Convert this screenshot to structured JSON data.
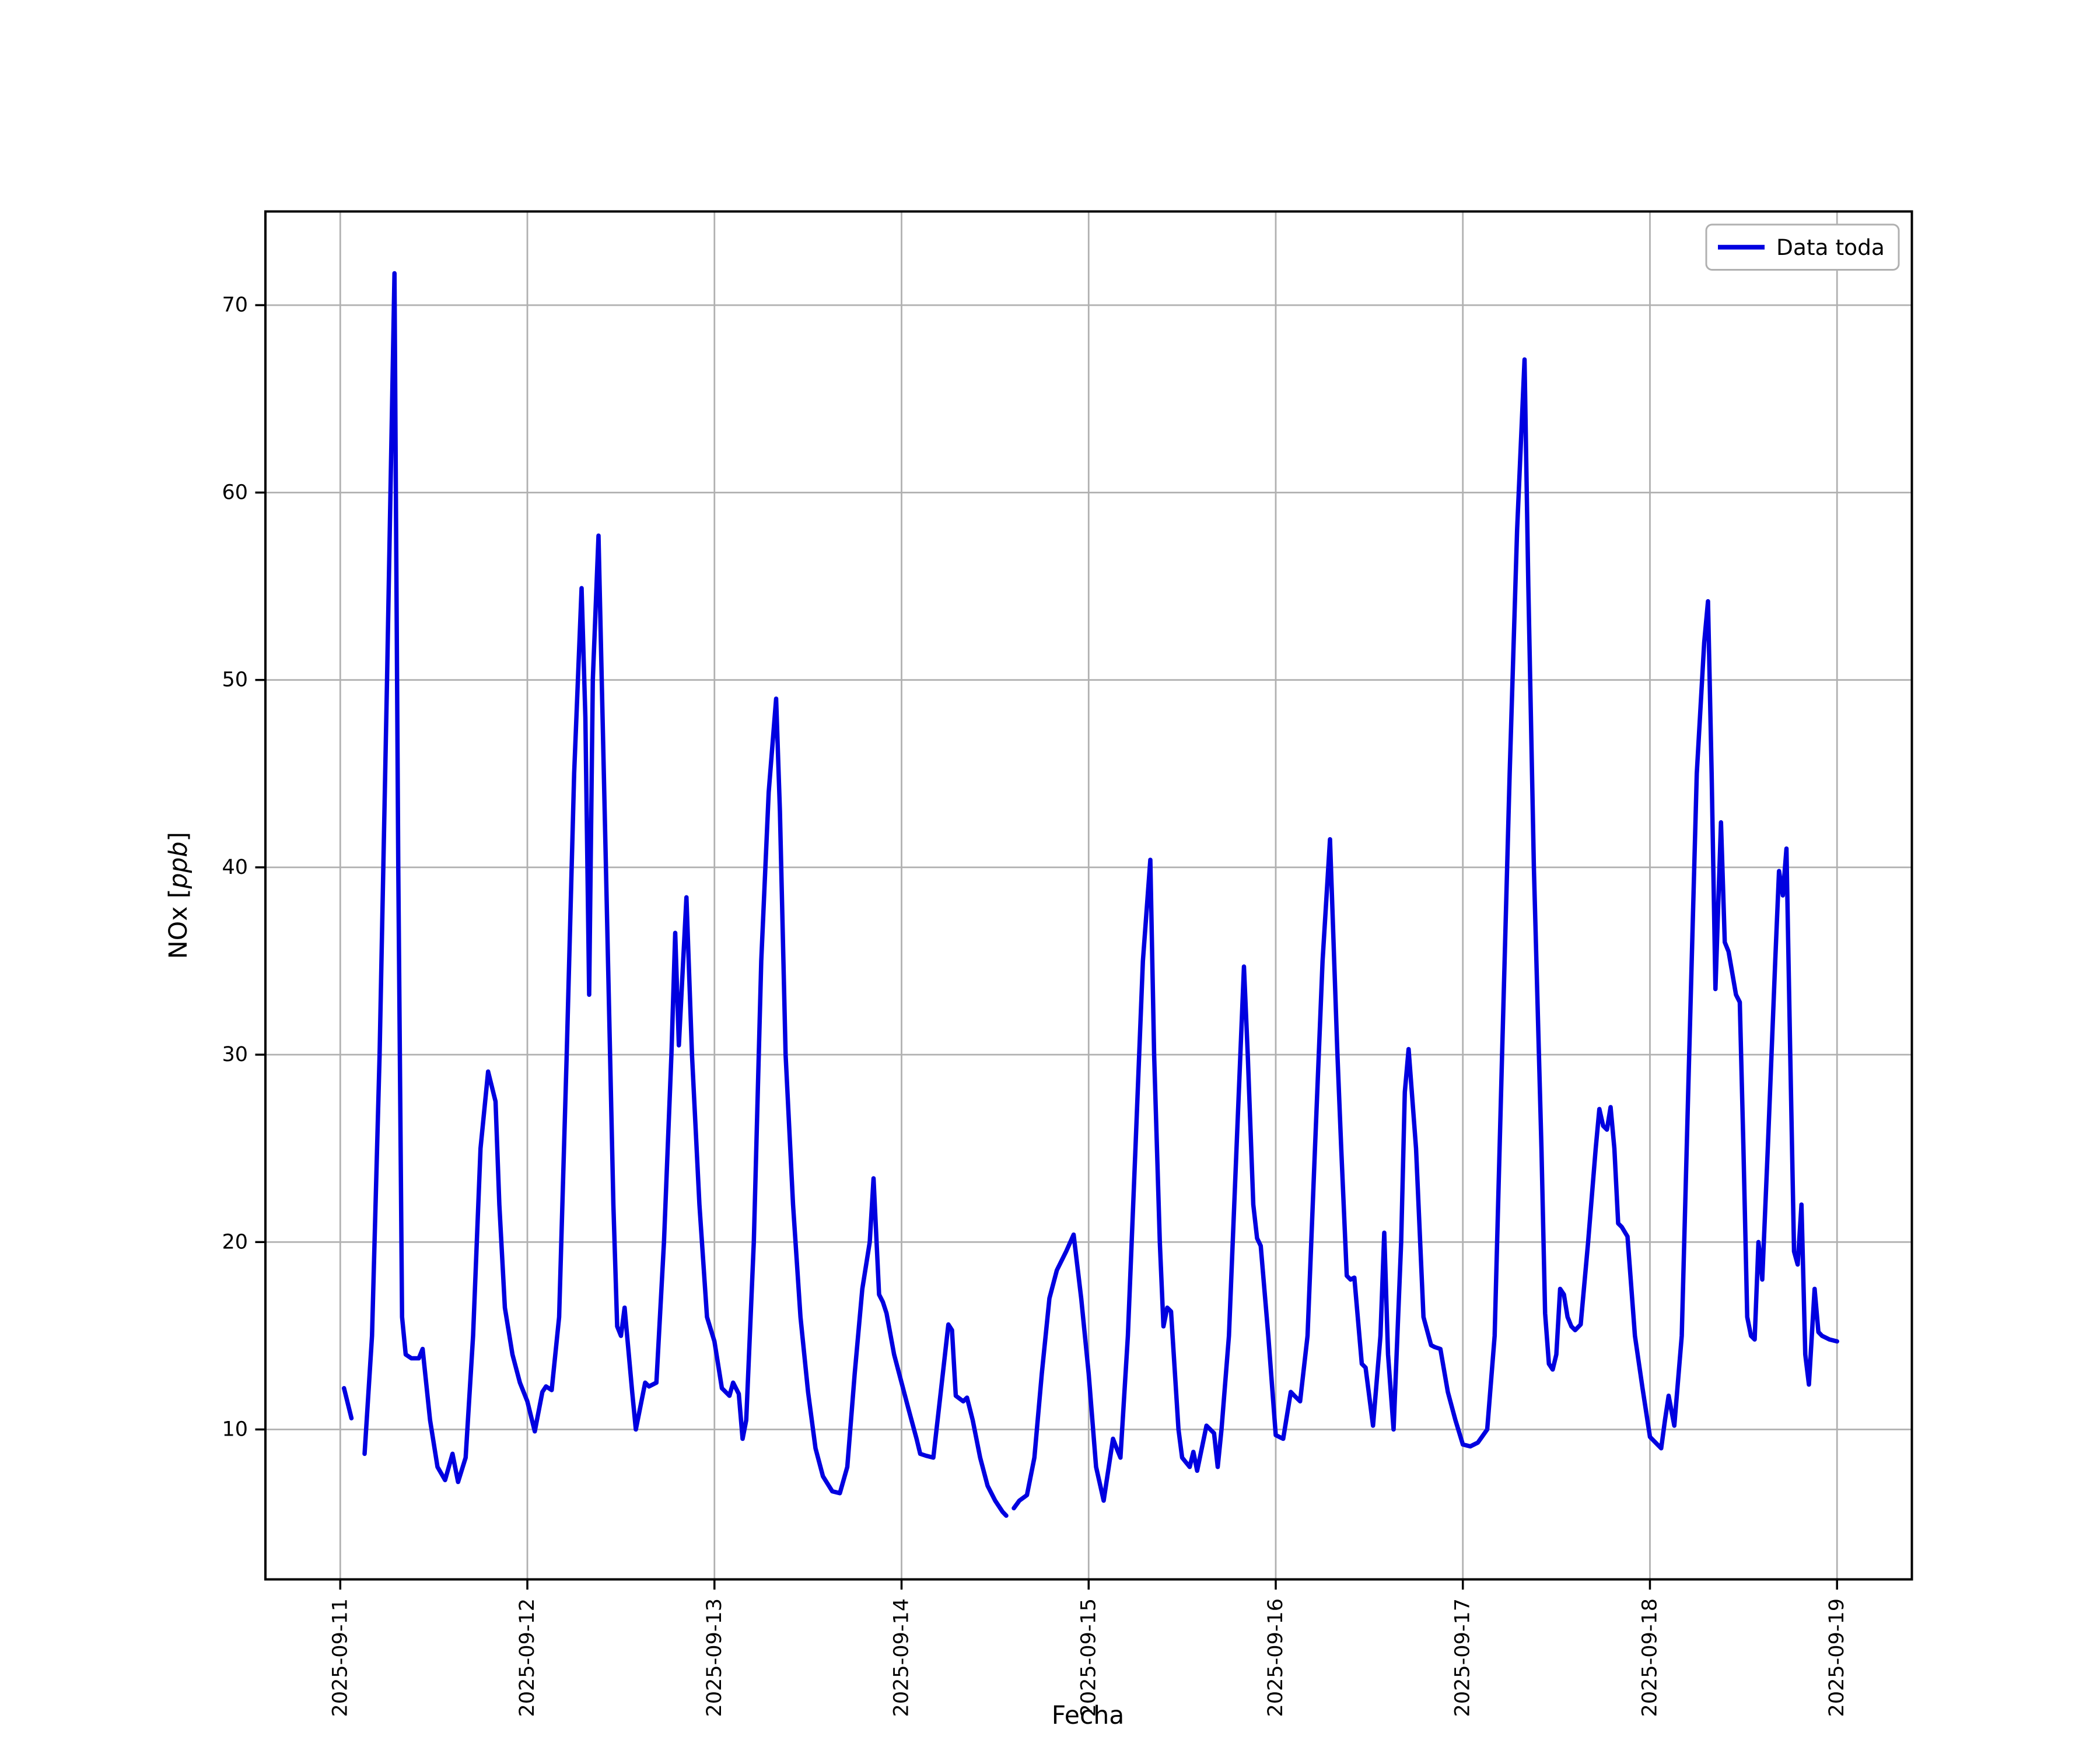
{
  "figure": {
    "background": "#ffffff",
    "grid_color": "#b0b0b0",
    "spine_color": "#000000"
  },
  "legend": {
    "label": "Data toda",
    "position": "upper right"
  },
  "chart_data": {
    "type": "line",
    "title": "",
    "xlabel": "Fecha",
    "ylabel": "NOx [ppb]",
    "ylabel_prefix": "NOx [",
    "ylabel_italic": "ppb",
    "ylabel_suffix": "]",
    "line_color": "#0000e0",
    "grid": true,
    "x_tick_labels": [
      "2025-09-11",
      "2025-09-12",
      "2025-09-13",
      "2025-09-14",
      "2025-09-15",
      "2025-09-16",
      "2025-09-17",
      "2025-09-18",
      "2025-09-19"
    ],
    "y_ticks": [
      10,
      20,
      30,
      40,
      50,
      60,
      70
    ],
    "xlim_days": [
      -0.4,
      8.4
    ],
    "ylim": [
      2,
      75
    ],
    "x_unit": "days since 2025-09-11",
    "series": [
      {
        "name": "Data toda",
        "x": [
          0.02,
          0.06,
          0.1,
          0.13,
          0.17,
          0.21,
          0.25,
          0.29,
          0.31,
          0.33,
          0.35,
          0.38,
          0.42,
          0.44,
          0.48,
          0.52,
          0.56,
          0.6,
          0.63,
          0.67,
          0.71,
          0.75,
          0.79,
          0.83,
          0.85,
          0.88,
          0.92,
          0.96,
          1.0,
          1.04,
          1.08,
          1.1,
          1.13,
          1.17,
          1.21,
          1.25,
          1.29,
          1.31,
          1.33,
          1.35,
          1.38,
          1.42,
          1.46,
          1.48,
          1.5,
          1.52,
          1.56,
          1.58,
          1.63,
          1.65,
          1.69,
          1.73,
          1.77,
          1.79,
          1.81,
          1.85,
          1.88,
          1.92,
          1.96,
          2.0,
          2.04,
          2.08,
          2.1,
          2.13,
          2.15,
          2.17,
          2.21,
          2.25,
          2.29,
          2.33,
          2.35,
          2.38,
          2.42,
          2.46,
          2.5,
          2.54,
          2.58,
          2.63,
          2.67,
          2.71,
          2.75,
          2.79,
          2.83,
          2.85,
          2.88,
          2.9,
          2.92,
          2.96,
          3.0,
          3.04,
          3.08,
          3.1,
          3.13,
          3.17,
          3.21,
          3.25,
          3.27,
          3.29,
          3.33,
          3.35,
          3.38,
          3.42,
          3.46,
          3.5,
          3.54,
          3.56,
          3.58,
          3.6,
          3.63,
          3.67,
          3.71,
          3.75,
          3.79,
          3.83,
          3.88,
          3.92,
          3.96,
          4.0,
          4.04,
          4.08,
          4.13,
          4.15,
          4.17,
          4.21,
          4.25,
          4.29,
          4.33,
          4.35,
          4.38,
          4.4,
          4.42,
          4.44,
          4.48,
          4.5,
          4.54,
          4.56,
          4.58,
          4.63,
          4.67,
          4.69,
          4.71,
          4.75,
          4.79,
          4.83,
          4.85,
          4.88,
          4.9,
          4.92,
          4.96,
          5.0,
          5.04,
          5.08,
          5.1,
          5.13,
          5.17,
          5.21,
          5.25,
          5.29,
          5.33,
          5.35,
          5.38,
          5.4,
          5.42,
          5.46,
          5.48,
          5.52,
          5.56,
          5.58,
          5.6,
          5.63,
          5.67,
          5.69,
          5.71,
          5.75,
          5.79,
          5.83,
          5.85,
          5.88,
          5.92,
          5.96,
          6.0,
          6.04,
          6.08,
          6.13,
          6.17,
          6.21,
          6.25,
          6.29,
          6.33,
          6.35,
          6.38,
          6.42,
          6.44,
          6.46,
          6.48,
          6.5,
          6.52,
          6.54,
          6.56,
          6.58,
          6.6,
          6.63,
          6.67,
          6.71,
          6.73,
          6.75,
          6.77,
          6.79,
          6.81,
          6.83,
          6.85,
          6.88,
          6.92,
          6.96,
          7.0,
          7.04,
          7.06,
          7.08,
          7.1,
          7.13,
          7.17,
          7.21,
          7.25,
          7.29,
          7.31,
          7.33,
          7.35,
          7.38,
          7.4,
          7.42,
          7.46,
          7.48,
          7.5,
          7.52,
          7.54,
          7.56,
          7.58,
          7.6,
          7.63,
          7.67,
          7.69,
          7.71,
          7.73,
          7.75,
          7.77,
          7.79,
          7.81,
          7.83,
          7.85,
          7.88,
          7.9,
          7.92,
          7.96,
          8.0
        ],
        "values": [
          12.2,
          10.6,
          null,
          8.7,
          15,
          30,
          50,
          71.7,
          40,
          16,
          14,
          13.8,
          13.8,
          14.3,
          10.5,
          8,
          7.3,
          8.7,
          7.2,
          8.5,
          15,
          25,
          29.1,
          27.5,
          22,
          16.5,
          14,
          12.5,
          11.5,
          9.9,
          12,
          12.3,
          12.1,
          16,
          30,
          45,
          54.9,
          48,
          33.2,
          50,
          57.7,
          40,
          22,
          15.5,
          15,
          16.5,
          12,
          10,
          12.5,
          12.3,
          12.5,
          20,
          30,
          36.5,
          30.5,
          38.4,
          30,
          22,
          16,
          14.7,
          12.2,
          11.8,
          12.5,
          11.9,
          9.5,
          10.5,
          20,
          35,
          44,
          49,
          43,
          30,
          22,
          16,
          12,
          9,
          7.5,
          6.7,
          6.6,
          8,
          13,
          17.5,
          20,
          23.4,
          17.2,
          16.8,
          16.2,
          14,
          12.5,
          11,
          9.5,
          8.7,
          8.6,
          8.5,
          12,
          15.6,
          15.3,
          11.8,
          11.5,
          11.7,
          10.5,
          8.5,
          7,
          6.2,
          5.6,
          5.4,
          null,
          5.8,
          6.2,
          6.5,
          8.5,
          13,
          17,
          18.5,
          19.5,
          20.4,
          17,
          13,
          8,
          6.2,
          9.5,
          9,
          8.5,
          15,
          25,
          35,
          40.4,
          30,
          20,
          15.5,
          16.5,
          16.3,
          10,
          8.5,
          8,
          8.8,
          7.8,
          10.2,
          9.8,
          8,
          10,
          15,
          25,
          34.7,
          30,
          22,
          20.2,
          19.8,
          15,
          9.7,
          9.5,
          12,
          11.8,
          11.5,
          15,
          25,
          35,
          41.5,
          30,
          25,
          18.2,
          18,
          18.1,
          13.5,
          13.3,
          10.2,
          15,
          20.5,
          14,
          10,
          20,
          28,
          30.3,
          25,
          16,
          14.5,
          14.4,
          14.3,
          12,
          10.5,
          9.2,
          9.1,
          9.3,
          10,
          15,
          30,
          45,
          58,
          67.1,
          55,
          40,
          25,
          16.2,
          13.5,
          13.2,
          14,
          17.5,
          17.2,
          16,
          15.5,
          15.3,
          15.6,
          20,
          25,
          27.1,
          26.2,
          26,
          27.2,
          25,
          21,
          20.8,
          20.3,
          15,
          12.2,
          9.6,
          9.2,
          9,
          10.5,
          11.8,
          10.2,
          15,
          30,
          45,
          52,
          54.2,
          45,
          33.5,
          42.4,
          36,
          35.5,
          33.2,
          32.8,
          25,
          16,
          15,
          14.8,
          20,
          18,
          25,
          35,
          39.8,
          38.5,
          41,
          30,
          19.5,
          18.8,
          22,
          14,
          12.4,
          17.5,
          15.2,
          15,
          14.8,
          14.7
        ]
      }
    ]
  }
}
